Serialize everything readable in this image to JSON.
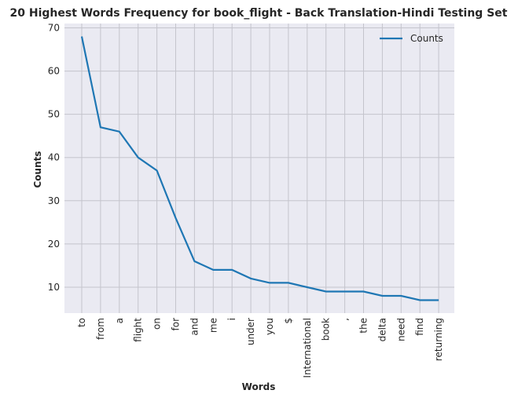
{
  "chart_data": {
    "type": "line",
    "title": "20 Highest Words Frequency for book_flight - Back Translation-Hindi Testing Set",
    "xlabel": "Words",
    "ylabel": "Counts",
    "categories": [
      "to",
      "from",
      "a",
      "flight",
      "on",
      "for",
      "and",
      "me",
      "i",
      "under",
      "you",
      "$",
      "International",
      "book",
      ",",
      "the",
      "delta",
      "need",
      "find",
      "returning"
    ],
    "series": [
      {
        "name": "Counts",
        "values": [
          68,
          47,
          46,
          40,
          37,
          26,
          16,
          14,
          14,
          12,
          11,
          11,
          10,
          9,
          9,
          9,
          8,
          8,
          7,
          7
        ]
      }
    ],
    "yticks": [
      10,
      20,
      30,
      40,
      50,
      60,
      70
    ],
    "ylim": [
      4,
      71
    ],
    "grid": true,
    "legend_position": "top-right",
    "colors": {
      "line": "#1f77b4",
      "plot_bg": "#eaeaf2",
      "grid": "#c4c4cc"
    }
  }
}
